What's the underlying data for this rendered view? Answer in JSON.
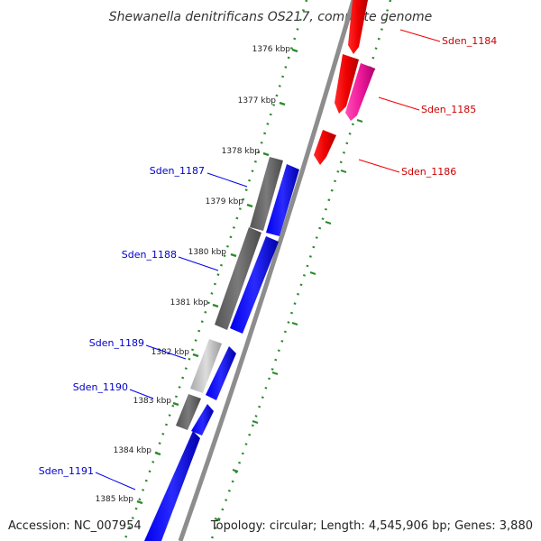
{
  "title": "Shewanella denitrificans OS217, complete genome",
  "footer": {
    "accession": "Accession: NC_007954",
    "topology": "Topology: circular; Length: 4,545,906 bp; Genes: 3,880"
  },
  "colors": {
    "forward_strand": "#0000ee",
    "reverse_strand": "#ee0000",
    "pink_gene": "#ee1a9a",
    "gray_dark": "#666666",
    "gray_light": "#bbbbbb",
    "backbone": "#888888",
    "tick": "#2b8a2b",
    "forward_label": "#0000cc",
    "reverse_label": "#cc0000"
  },
  "ticks": [
    {
      "label": "1376 kbp"
    },
    {
      "label": "1377 kbp"
    },
    {
      "label": "1378 kbp"
    },
    {
      "label": "1379 kbp"
    },
    {
      "label": "1380 kbp"
    },
    {
      "label": "1381 kbp"
    },
    {
      "label": "1382 kbp"
    },
    {
      "label": "1383 kbp"
    },
    {
      "label": "1384 kbp"
    },
    {
      "label": "1385 kbp"
    }
  ],
  "genes": [
    {
      "name": "Sden_1184",
      "strand": "reverse"
    },
    {
      "name": "Sden_1185",
      "strand": "reverse"
    },
    {
      "name": "Sden_1186",
      "strand": "reverse"
    },
    {
      "name": "Sden_1187",
      "strand": "forward"
    },
    {
      "name": "Sden_1188",
      "strand": "forward"
    },
    {
      "name": "Sden_1189",
      "strand": "forward"
    },
    {
      "name": "Sden_1190",
      "strand": "forward"
    },
    {
      "name": "Sden_1191",
      "strand": "forward"
    }
  ]
}
